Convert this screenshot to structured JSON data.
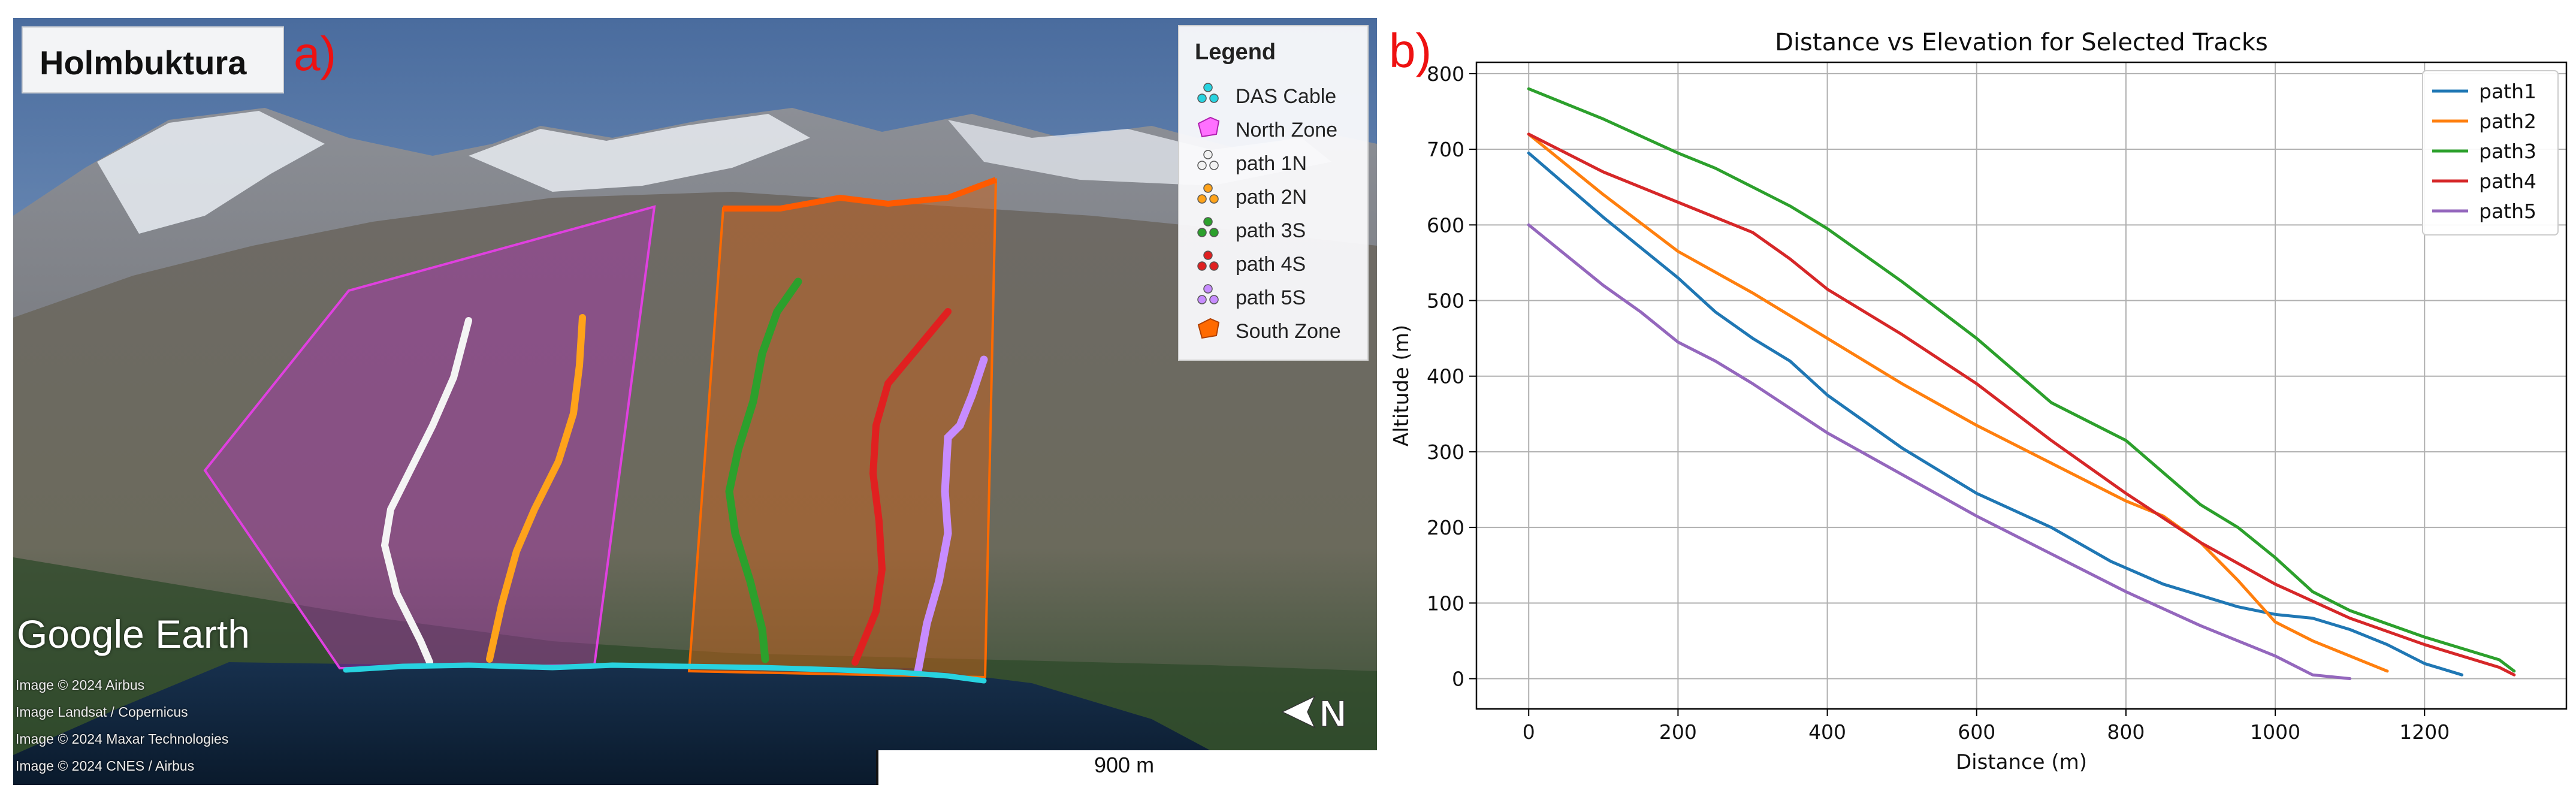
{
  "panel_a": {
    "label": "a)",
    "location_title": "Holmbuktura",
    "legend": {
      "title": "Legend",
      "items": [
        {
          "label": "DAS Cable",
          "color": "#28d3e0",
          "kind": "points"
        },
        {
          "label": "North Zone",
          "color": "#e040e0",
          "kind": "polygon"
        },
        {
          "label": "path 1N",
          "color": "#f2f2f2",
          "kind": "points"
        },
        {
          "label": "path 2N",
          "color": "#ffa31a",
          "kind": "points"
        },
        {
          "label": "path 3S",
          "color": "#2ca02c",
          "kind": "points"
        },
        {
          "label": "path 4S",
          "color": "#e02020",
          "kind": "points"
        },
        {
          "label": "path 5S",
          "color": "#c78cff",
          "kind": "points"
        },
        {
          "label": "South Zone",
          "color": "#ff6a00",
          "kind": "polygon"
        }
      ]
    },
    "watermark": "Google Earth",
    "credits": [
      "Image © 2024 Airbus",
      "Image Landsat / Copernicus",
      "Image © 2024 Maxar Technologies",
      "Image © 2024 CNES / Airbus"
    ],
    "scale_label": "900 m",
    "compass_label": "N"
  },
  "chart_data": {
    "panel_label": "b)",
    "type": "line",
    "title": "Distance vs Elevation for Selected Tracks",
    "xlabel": "Distance (m)",
    "ylabel": "Altitude (m)",
    "xlim": [
      -70,
      1390
    ],
    "ylim": [
      -40,
      815
    ],
    "xticks": [
      0,
      200,
      400,
      600,
      800,
      1000,
      1200
    ],
    "yticks": [
      0,
      100,
      200,
      300,
      400,
      500,
      600,
      700,
      800
    ],
    "grid": true,
    "legend_position": "top-right",
    "series": [
      {
        "name": "path1",
        "color": "#1f77b4",
        "x": [
          0,
          100,
          200,
          250,
          300,
          350,
          400,
          500,
          600,
          700,
          780,
          850,
          950,
          1000,
          1050,
          1100,
          1150,
          1200,
          1250
        ],
        "y": [
          695,
          610,
          530,
          485,
          450,
          420,
          375,
          305,
          245,
          200,
          155,
          125,
          95,
          85,
          80,
          65,
          45,
          20,
          5
        ]
      },
      {
        "name": "path2",
        "color": "#ff7f0e",
        "x": [
          0,
          100,
          200,
          300,
          400,
          500,
          600,
          700,
          800,
          850,
          900,
          950,
          1000,
          1050,
          1100,
          1150
        ],
        "y": [
          720,
          640,
          565,
          510,
          450,
          390,
          335,
          285,
          235,
          215,
          180,
          130,
          75,
          50,
          30,
          10
        ]
      },
      {
        "name": "path3",
        "color": "#2ca02c",
        "x": [
          0,
          100,
          200,
          250,
          300,
          350,
          400,
          500,
          600,
          700,
          800,
          900,
          950,
          1000,
          1050,
          1100,
          1200,
          1300,
          1320
        ],
        "y": [
          780,
          740,
          695,
          675,
          650,
          625,
          595,
          525,
          450,
          365,
          315,
          230,
          200,
          160,
          115,
          90,
          55,
          25,
          10
        ]
      },
      {
        "name": "path4",
        "color": "#d62728",
        "x": [
          0,
          50,
          100,
          200,
          300,
          350,
          400,
          500,
          600,
          700,
          800,
          900,
          1000,
          1100,
          1200,
          1300,
          1320
        ],
        "y": [
          720,
          695,
          670,
          630,
          590,
          555,
          515,
          455,
          390,
          315,
          245,
          180,
          125,
          80,
          45,
          15,
          5
        ]
      },
      {
        "name": "path5",
        "color": "#9467bd",
        "x": [
          0,
          50,
          100,
          150,
          200,
          250,
          300,
          400,
          500,
          600,
          700,
          800,
          900,
          1000,
          1050,
          1100
        ],
        "y": [
          600,
          560,
          520,
          485,
          445,
          420,
          390,
          325,
          270,
          215,
          165,
          115,
          70,
          30,
          5,
          0
        ]
      }
    ]
  }
}
